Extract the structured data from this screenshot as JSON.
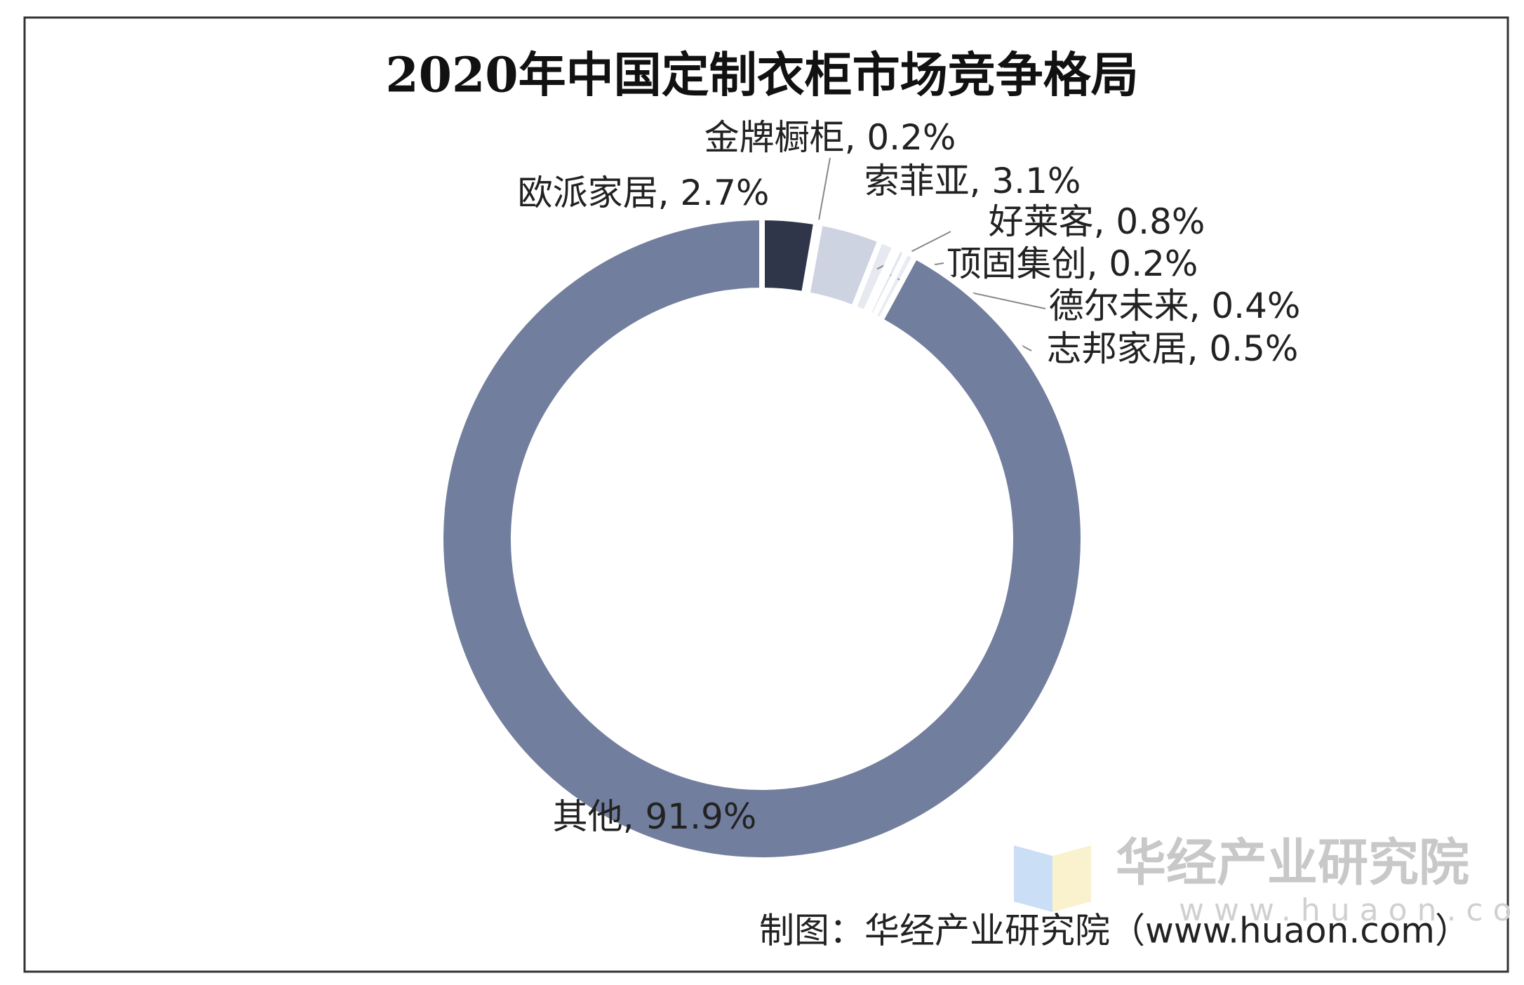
{
  "chart_data": {
    "type": "donut",
    "title": "2020年中国定制衣柜市场竞争格局",
    "categories": [
      "欧派家居",
      "金牌橱柜",
      "索菲亚",
      "好莱客",
      "顶固集创",
      "德尔未来",
      "志邦家居",
      "其他"
    ],
    "values": [
      2.7,
      0.2,
      3.1,
      0.8,
      0.2,
      0.4,
      0.5,
      91.9
    ],
    "value_labels": [
      "2.7%",
      "0.2%",
      "3.1%",
      "0.8%",
      "0.2%",
      "0.4%",
      "0.5%",
      "91.9%"
    ],
    "label_separator": ", ",
    "colors": [
      "#2f3649",
      "#f4f5f8",
      "#cdd3e1",
      "#e6e9f0",
      "#eef0f4",
      "#dfe3eb",
      "#e9ecf2",
      "#727e9d"
    ],
    "source": "制图：华经产业研究院（www.huaon.com）",
    "watermark": "华经产业研究院",
    "watermark_url": "www.huaon.com"
  }
}
